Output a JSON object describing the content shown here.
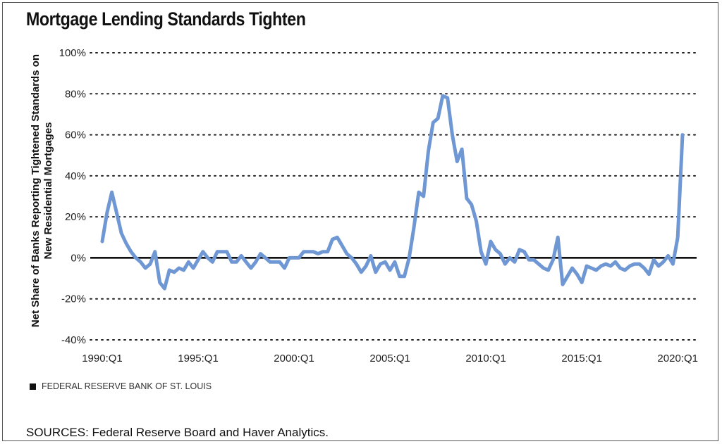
{
  "title": "Mortgage Lending Standards Tighten",
  "legend_text": "FEDERAL RESERVE BANK OF ST. LOUIS",
  "sources": "SOURCES: Federal Reserve Board and Haver Analytics.",
  "colors": {
    "line": "#6f97d3",
    "zero": "#000000",
    "grid": "#222222"
  },
  "chart_data": {
    "type": "line",
    "title": "Mortgage Lending Standards Tighten",
    "xlabel": "",
    "ylabel_lines": [
      "Net Share of Banks Reporting Tightened Standards on",
      "New Residential Mortgages"
    ],
    "ylim": [
      -40,
      100
    ],
    "yticks": [
      -40,
      -20,
      0,
      20,
      40,
      60,
      80,
      100
    ],
    "ytick_labels": [
      "-40%",
      "-20%",
      "0%",
      "20%",
      "40%",
      "60%",
      "80%",
      "100%"
    ],
    "xlim": [
      1990.0,
      2020.25
    ],
    "xticks": [
      1990.0,
      1995.0,
      2000.0,
      2005.0,
      2010.0,
      2015.0,
      2020.0
    ],
    "xtick_labels": [
      "1990:Q1",
      "1995:Q1",
      "2000:Q1",
      "2005:Q1",
      "2010:Q1",
      "2015:Q1",
      "2020:Q1"
    ],
    "grid": "horizontal dotted",
    "series": [
      {
        "x": [
          1990.0,
          1990.25,
          1990.5,
          1990.75,
          1991.0,
          1991.25,
          1991.5,
          1991.75,
          1992.0,
          1992.25,
          1992.5,
          1992.75,
          1993.0,
          1993.25,
          1993.5,
          1993.75,
          1994.0,
          1994.25,
          1994.5,
          1994.75,
          1995.0,
          1995.25,
          1995.5,
          1995.75,
          1996.0,
          1996.25,
          1996.5,
          1996.75,
          1997.0,
          1997.25,
          1997.5,
          1997.75,
          1998.0,
          1998.25,
          1998.5,
          1998.75,
          1999.0,
          1999.25,
          1999.5,
          1999.75,
          2000.0,
          2000.25,
          2000.5,
          2000.75,
          2001.0,
          2001.25,
          2001.5,
          2001.75,
          2002.0,
          2002.25,
          2002.5,
          2002.75,
          2003.0,
          2003.25,
          2003.5,
          2003.75,
          2004.0,
          2004.25,
          2004.5,
          2004.75,
          2005.0,
          2005.25,
          2005.5,
          2005.75,
          2006.0,
          2006.25,
          2006.5,
          2006.75,
          2007.0,
          2007.25,
          2007.5,
          2007.75,
          2008.0,
          2008.25,
          2008.5,
          2008.75,
          2009.0,
          2009.25,
          2009.5,
          2009.75,
          2010.0,
          2010.25,
          2010.5,
          2010.75,
          2011.0,
          2011.25,
          2011.5,
          2011.75,
          2012.0,
          2012.25,
          2012.5,
          2012.75,
          2013.0,
          2013.25,
          2013.5,
          2013.75,
          2014.0,
          2014.25,
          2014.5,
          2014.75,
          2015.0,
          2015.25,
          2015.5,
          2015.75,
          2016.0,
          2016.25,
          2016.5,
          2016.75,
          2017.0,
          2017.25,
          2017.5,
          2017.75,
          2018.0,
          2018.25,
          2018.5,
          2018.75,
          2019.0,
          2019.25,
          2019.5,
          2019.75,
          2020.0,
          2020.25
        ],
        "values": [
          8,
          22,
          32,
          22,
          12,
          7,
          3,
          0,
          -2,
          -5,
          -3,
          3,
          -12,
          -15,
          -6,
          -7,
          -5,
          -6,
          -2,
          -5,
          -1,
          3,
          0,
          -2,
          3,
          3,
          3,
          -2,
          -2,
          1,
          -2,
          -5,
          -2,
          2,
          0,
          -2,
          -2,
          -2,
          -5,
          0,
          0,
          0,
          3,
          3,
          3,
          2,
          3,
          3,
          9,
          10,
          6,
          2,
          0,
          -3,
          -7,
          -4,
          1,
          -7,
          -3,
          -2,
          -6,
          -2,
          -9,
          -9,
          0,
          15,
          32,
          30,
          52,
          66,
          68,
          79,
          78,
          60,
          47,
          53,
          29,
          26,
          18,
          3,
          -3,
          8,
          4,
          2,
          -3,
          0,
          -2,
          4,
          3,
          -1,
          -1,
          -3,
          -5,
          -6,
          -1,
          10,
          -13,
          -9,
          -5,
          -8,
          -12,
          -4,
          -5,
          -6,
          -4,
          -3,
          -4,
          -2,
          -5,
          -6,
          -4,
          -3,
          -3,
          -5,
          -8,
          -1,
          -4,
          -2,
          1,
          -3,
          10,
          60
        ]
      }
    ]
  }
}
